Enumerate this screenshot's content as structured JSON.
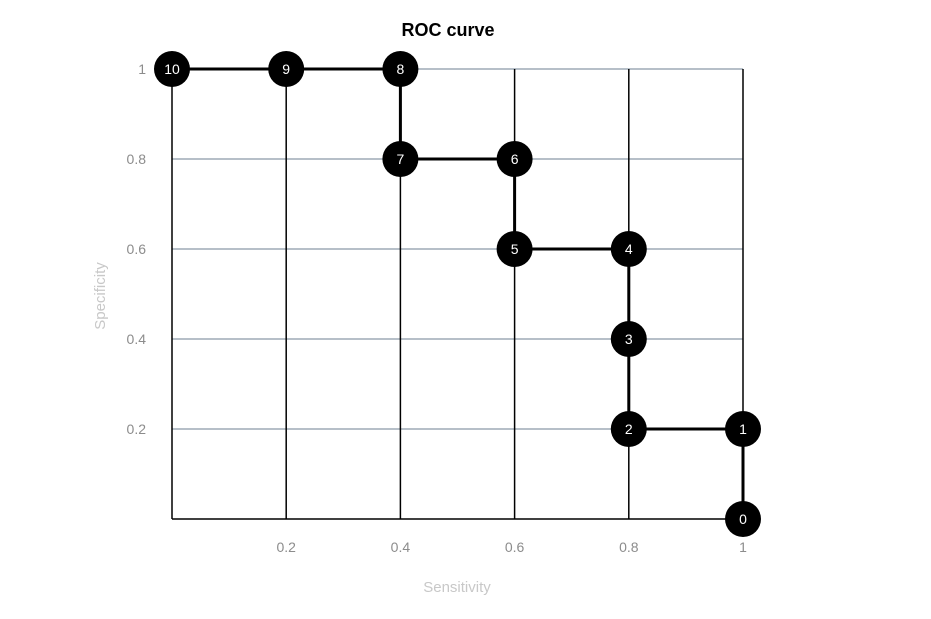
{
  "chart_data": {
    "type": "line",
    "title": "ROC curve",
    "xlabel": "Sensitivity",
    "ylabel": "Specificity",
    "xlim": [
      0,
      1
    ],
    "ylim": [
      0,
      1
    ],
    "x_ticks": [
      "0.2",
      "0.4",
      "0.6",
      "0.8",
      "1"
    ],
    "y_ticks": [
      "0.2",
      "0.4",
      "0.6",
      "0.8",
      "1"
    ],
    "grid": true,
    "points": [
      {
        "label": "0",
        "x": 1.0,
        "y": 0.0
      },
      {
        "label": "1",
        "x": 1.0,
        "y": 0.2
      },
      {
        "label": "2",
        "x": 0.8,
        "y": 0.2
      },
      {
        "label": "3",
        "x": 0.8,
        "y": 0.4
      },
      {
        "label": "4",
        "x": 0.8,
        "y": 0.6
      },
      {
        "label": "5",
        "x": 0.6,
        "y": 0.6
      },
      {
        "label": "6",
        "x": 0.6,
        "y": 0.8
      },
      {
        "label": "7",
        "x": 0.4,
        "y": 0.8
      },
      {
        "label": "8",
        "x": 0.4,
        "y": 1.0
      },
      {
        "label": "9",
        "x": 0.2,
        "y": 1.0
      },
      {
        "label": "10",
        "x": 0.0,
        "y": 1.0
      }
    ]
  },
  "colors": {
    "line": "#000000",
    "marker": "#000000",
    "marker_text": "#ffffff",
    "gridline": "#8a99a8",
    "tick_label": "#8c8c8c",
    "axis_label": "#c8c8c8"
  }
}
